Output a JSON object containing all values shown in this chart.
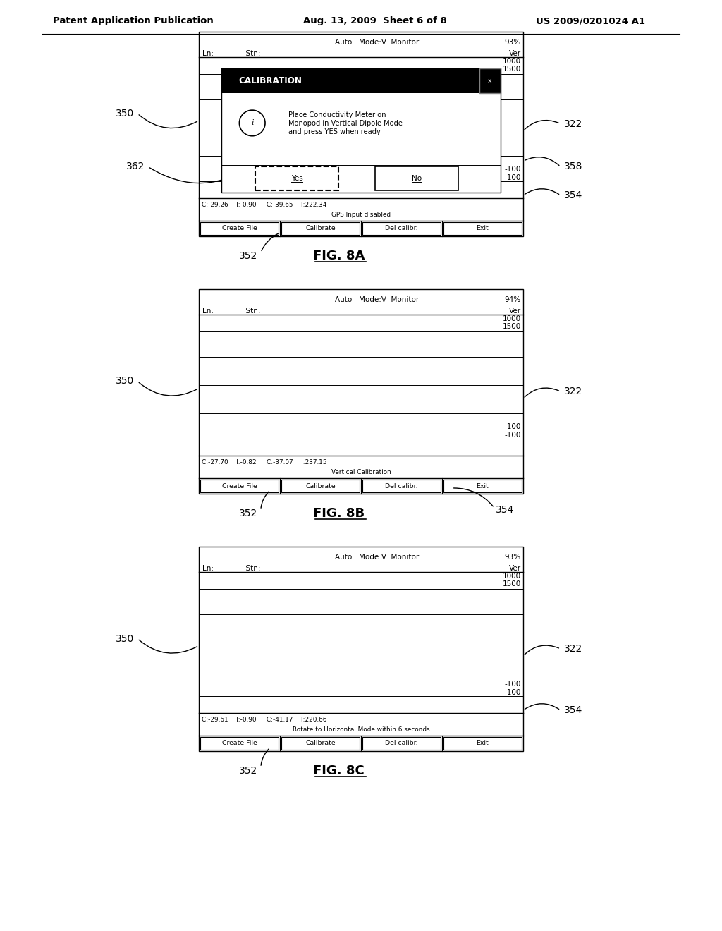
{
  "bg_color": "#ffffff",
  "header_left": "Patent Application Publication",
  "header_mid": "Aug. 13, 2009  Sheet 6 of 8",
  "header_right": "US 2009/0201024 A1",
  "fig8a": {
    "pct": "93%",
    "mode": "Auto   Mode:V  Monitor",
    "ln_stn": "Ln:              Stn:",
    "ver": "Ver",
    "val1": "1000",
    "val2": "1500",
    "valm1": "-100",
    "valm2": "-100",
    "status1": "C:-29.26    I:-0.90     C:-39.65    I:222.34",
    "status2": "GPS Input disabled",
    "buttons": [
      "Create File",
      "Calibrate",
      "Del calibr.",
      "Exit"
    ],
    "dialog_title": "CALIBRATION",
    "dialog_body_line1": "Place Conductivity Meter on",
    "dialog_body_line2": "Monopod in Vertical Dipole Mode",
    "dialog_body_line3": "and press YES when ready",
    "btn1": "Yes",
    "btn2": "No",
    "fig_label": "FIG. 8A",
    "lbl_350": "350",
    "lbl_322": "322",
    "lbl_362": "362",
    "lbl_358": "358",
    "lbl_352": "352",
    "lbl_354": "354"
  },
  "fig8b": {
    "pct": "94%",
    "mode": "Auto   Mode:V  Monitor",
    "ln_stn": "Ln:              Stn:",
    "ver": "Ver",
    "val1": "1000",
    "val2": "1500",
    "valm1": "-100",
    "valm2": "-100",
    "status1": "C:-27.70    I:-0.82     C:-37.07    I:237.15",
    "status2": "Vertical Calibration",
    "buttons": [
      "Create File",
      "Calibrate",
      "Del calibr.",
      "Exit"
    ],
    "fig_label": "FIG. 8B",
    "lbl_350": "350",
    "lbl_322": "322",
    "lbl_352": "352",
    "lbl_354": "354"
  },
  "fig8c": {
    "pct": "93%",
    "mode": "Auto   Mode:V  Monitor",
    "ln_stn": "Ln:              Stn:",
    "ver": "Ver",
    "val1": "1000",
    "val2": "1500",
    "valm1": "-100",
    "valm2": "-100",
    "status1": "C:-29.61    I:-0.90     C:-41.17    I:220.66",
    "status2": "Rotate to Horizontal Mode within 6 seconds",
    "buttons": [
      "Create File",
      "Calibrate",
      "Del calibr.",
      "Exit"
    ],
    "fig_label": "FIG. 8C",
    "lbl_350": "350",
    "lbl_322": "322",
    "lbl_352": "352",
    "lbl_354": "354"
  }
}
